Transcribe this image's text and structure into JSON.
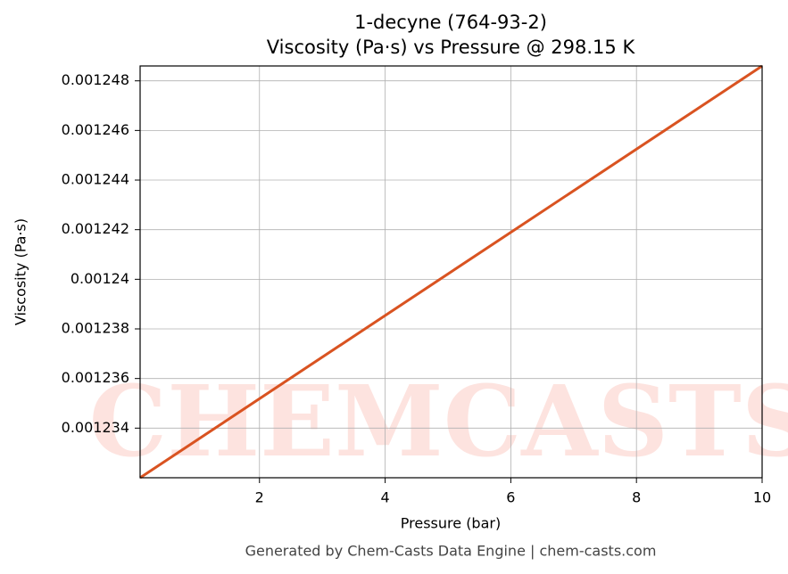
{
  "chart_data": {
    "type": "line",
    "title": "1-decyne (764-93-2)",
    "subtitle": "Viscosity (Pa·s) vs Pressure @ 298.15 K",
    "xlabel": "Pressure (bar)",
    "ylabel": "Viscosity (Pa·s)",
    "footer": "Generated by Chem-Casts Data Engine | chem-casts.com",
    "watermark": "CHEMCASTS",
    "x": [
      0.1,
      10
    ],
    "series": [
      {
        "name": "Viscosity",
        "color": "#d95321",
        "values": [
          0.001232,
          0.0012486
        ]
      }
    ],
    "xlim": [
      0.1,
      10
    ],
    "xticks": [
      2,
      4,
      6,
      8,
      10
    ],
    "ylim": [
      0.001232,
      0.0012486
    ],
    "yticks": [
      0.001234,
      0.001236,
      0.001238,
      0.00124,
      0.001242,
      0.001244,
      0.001246,
      0.001248
    ],
    "grid": true
  }
}
